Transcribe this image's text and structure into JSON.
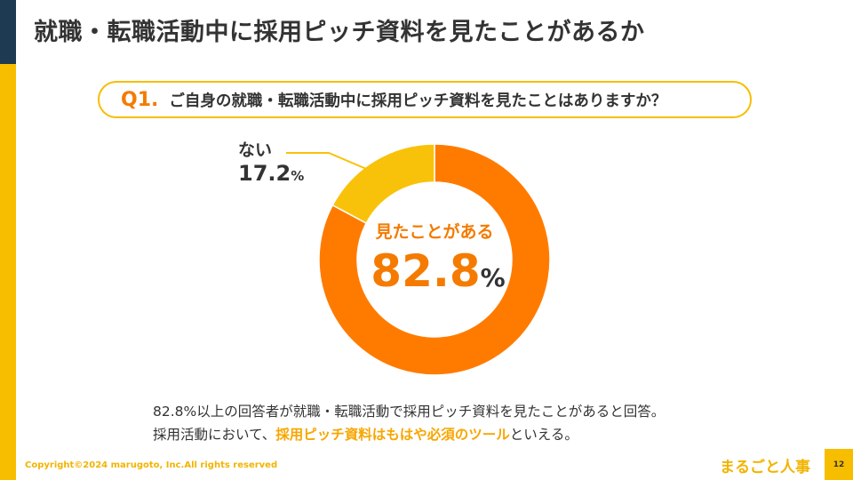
{
  "title": "就職・転職活動中に採用ピッチ資料を見たことがあるか",
  "question": {
    "number": "Q1.",
    "text": "ご自身の就職・転職活動中に採用ピッチ資料を見たことはありますか？"
  },
  "chart_data": {
    "type": "pie",
    "series": [
      {
        "name": "見たことがある",
        "value": 82.8,
        "color": "#ff7b00"
      },
      {
        "name": "ない",
        "value": 17.2,
        "color": "#f9c20a"
      }
    ],
    "unit": "%",
    "labels": {
      "main_name": "見たことがある",
      "main_value": "82.8",
      "minor_name": "ない",
      "minor_value": "17.2",
      "percent_sign": "%"
    }
  },
  "summary": {
    "line1": "82.8%以上の回答者が就職・転職活動で採用ピッチ資料を見たことがあると回答。",
    "line2_before": "採用活動において、",
    "line2_highlight": "採用ピッチ資料はもはや必須のツール",
    "line2_after": "といえる。"
  },
  "footer": {
    "copyright": "Copyright©2024 marugoto, Inc.All rights reserved",
    "logo": "まるごと人事",
    "page_number": "12"
  }
}
